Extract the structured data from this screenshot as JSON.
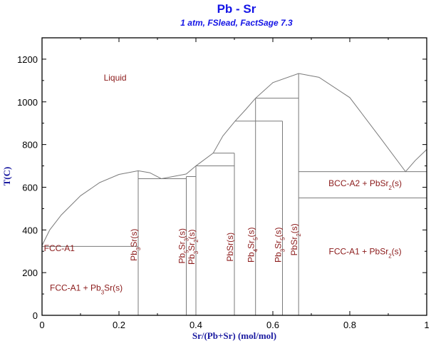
{
  "chart_data": {
    "type": "line",
    "title": "Pb - Sr",
    "subtitle": "1 atm, FSlead, FactSage 7.3",
    "xlabel": "Sr/(Pb+Sr) (mol/mol)",
    "ylabel": "T(C)",
    "xlim": [
      0,
      1
    ],
    "ylim": [
      0,
      1300
    ],
    "xticks": [
      0,
      0.2,
      0.4,
      0.6,
      0.8,
      1
    ],
    "xtick_labels": [
      "0",
      "0.2",
      "0.4",
      "0.6",
      "0.8",
      "1"
    ],
    "yticks": [
      0,
      200,
      400,
      600,
      800,
      1000,
      1200
    ],
    "ytick_labels": [
      "0",
      "200",
      "400",
      "600",
      "800",
      "1000",
      "1200"
    ],
    "grid": false,
    "line_color": "#7a7a7a",
    "label_color": "#8b1a1a",
    "title_color": "#1414e6",
    "liquidus": [
      [
        0,
        327
      ],
      [
        0.02,
        400
      ],
      [
        0.05,
        470
      ],
      [
        0.1,
        560
      ],
      [
        0.15,
        622
      ],
      [
        0.2,
        660
      ],
      [
        0.25,
        677
      ],
      [
        0.28,
        668
      ],
      [
        0.31,
        640
      ],
      [
        0.34,
        650
      ],
      [
        0.375,
        662
      ],
      [
        0.4,
        700
      ],
      [
        0.445,
        760
      ],
      [
        0.47,
        840
      ],
      [
        0.502,
        910
      ],
      [
        0.53,
        965
      ],
      [
        0.555,
        1017
      ],
      [
        0.6,
        1090
      ],
      [
        0.667,
        1133
      ],
      [
        0.72,
        1115
      ],
      [
        0.8,
        1020
      ],
      [
        0.88,
        830
      ],
      [
        0.945,
        673
      ],
      [
        0.97,
        725
      ],
      [
        1,
        777
      ]
    ],
    "compounds": [
      {
        "name": "Pb3Sr(s)",
        "x": 0.25,
        "tmax": 677
      },
      {
        "name": "Pb5Sr3(s)",
        "x": 0.375,
        "tmax": 650
      },
      {
        "name": "Pb3Sr2(s)",
        "x": 0.4,
        "tmax": 700
      },
      {
        "name": "PbSr(s)",
        "x": 0.5,
        "tmax": 760
      },
      {
        "name": "Pb4Sr5(s)",
        "x": 0.555,
        "tmax": 1017
      },
      {
        "name": "Pb3Sr5(s)",
        "x": 0.625,
        "tmax": 910
      },
      {
        "name": "PbSr2(s)",
        "x": 0.667,
        "tmax": 1133
      }
    ],
    "invariant_lines": [
      {
        "x1": 0,
        "x2": 0.25,
        "t": 323
      },
      {
        "x1": 0.25,
        "x2": 0.375,
        "t": 640
      },
      {
        "x1": 0.375,
        "x2": 0.4,
        "t": 650
      },
      {
        "x1": 0.4,
        "x2": 0.5,
        "t": 700
      },
      {
        "x1": 0.445,
        "x2": 0.5,
        "t": 760
      },
      {
        "x1": 0.502,
        "x2": 0.625,
        "t": 910
      },
      {
        "x1": 0.555,
        "x2": 0.667,
        "t": 1017
      },
      {
        "x1": 0.667,
        "x2": 1,
        "t": 673
      },
      {
        "x1": 0.667,
        "x2": 1,
        "t": 550
      }
    ],
    "region_labels": [
      {
        "text": "Liquid",
        "x": 0.19,
        "t": 1100
      },
      {
        "text": "FCC-A1",
        "x": 0.045,
        "t": 300
      },
      {
        "text": "FCC-A1 + Pb3Sr(s)",
        "x": 0.115,
        "t": 115
      },
      {
        "text": "BCC-A2 + PbSr2(s)",
        "x": 0.84,
        "t": 605
      },
      {
        "text": "FCC-A1 + PbSr2(s)",
        "x": 0.84,
        "t": 285
      }
    ]
  }
}
